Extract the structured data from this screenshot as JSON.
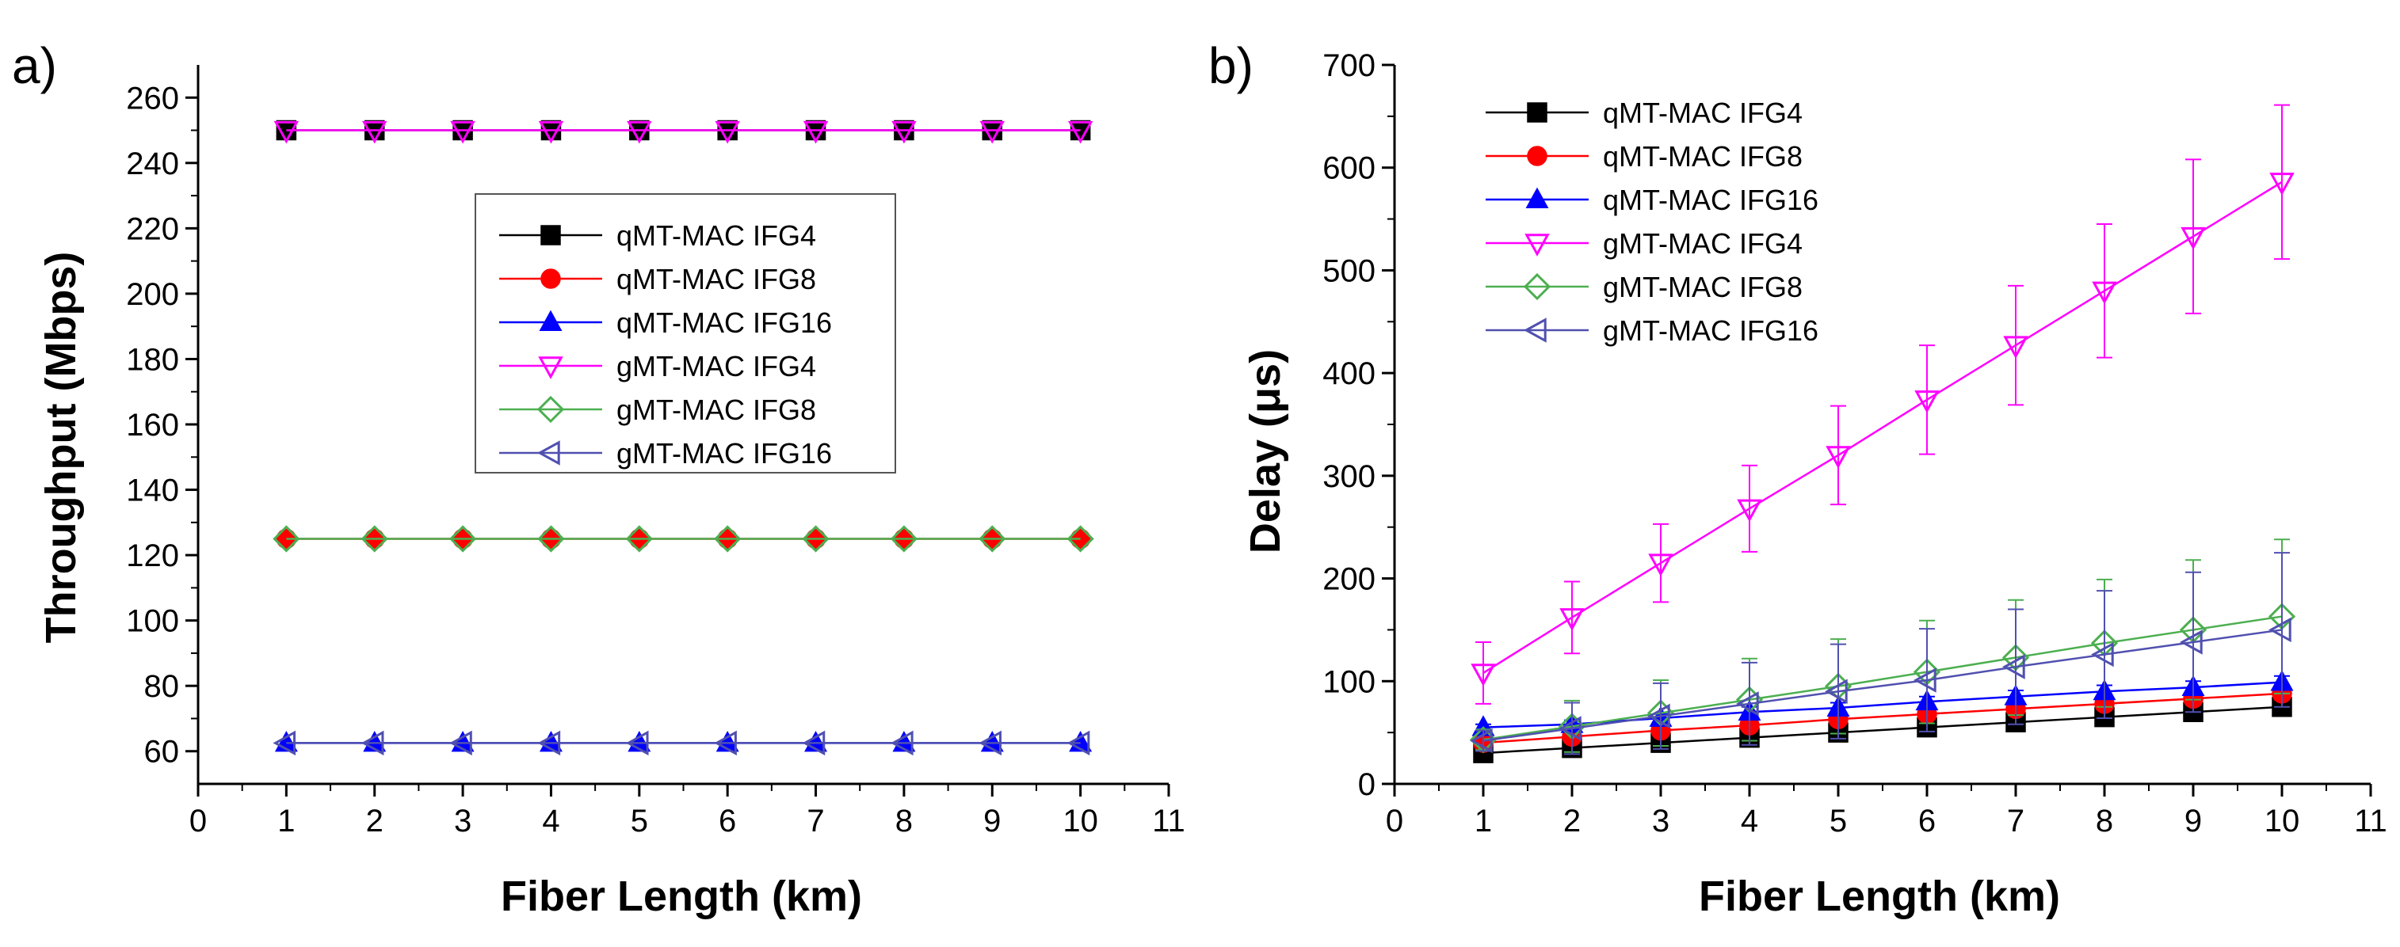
{
  "chart_data": [
    {
      "panel_label": "a)",
      "type": "line",
      "xlabel": "Fiber Length (km)",
      "ylabel": "Throughput (Mbps)",
      "xlim": [
        0,
        11
      ],
      "ylim": [
        50,
        270
      ],
      "xticks": [
        0,
        1,
        2,
        3,
        4,
        5,
        6,
        7,
        8,
        9,
        10,
        11
      ],
      "yticks": [
        60,
        80,
        100,
        120,
        140,
        160,
        180,
        200,
        220,
        240,
        260
      ],
      "grid": false,
      "legend_position": "center-right",
      "x": [
        1,
        2,
        3,
        4,
        5,
        6,
        7,
        8,
        9,
        10
      ],
      "series": [
        {
          "name": "qMT-MAC IFG4",
          "color": "#000000",
          "marker": "square",
          "values": [
            250,
            250,
            250,
            250,
            250,
            250,
            250,
            250,
            250,
            250
          ]
        },
        {
          "name": "qMT-MAC IFG8",
          "color": "#ff0000",
          "marker": "circle",
          "values": [
            125,
            125,
            125,
            125,
            125,
            125,
            125,
            125,
            125,
            125
          ]
        },
        {
          "name": "qMT-MAC IFG16",
          "color": "#0000ff",
          "marker": "triangle-up",
          "values": [
            62.5,
            62.5,
            62.5,
            62.5,
            62.5,
            62.5,
            62.5,
            62.5,
            62.5,
            62.5
          ]
        },
        {
          "name": "gMT-MAC IFG4",
          "color": "#ff00ff",
          "marker": "triangle-down",
          "values": [
            250,
            250,
            250,
            250,
            250,
            250,
            250,
            250,
            250,
            250
          ]
        },
        {
          "name": "gMT-MAC IFG8",
          "color": "#4caf50",
          "marker": "diamond",
          "values": [
            125,
            125,
            125,
            125,
            125,
            125,
            125,
            125,
            125,
            125
          ]
        },
        {
          "name": "gMT-MAC IFG16",
          "color": "#5050b0",
          "marker": "triangle-left",
          "values": [
            62.5,
            62.5,
            62.5,
            62.5,
            62.5,
            62.5,
            62.5,
            62.5,
            62.5,
            62.5
          ]
        }
      ]
    },
    {
      "panel_label": "b)",
      "type": "line",
      "xlabel": "Fiber Length (km)",
      "ylabel": "Delay (μs)",
      "xlim": [
        0,
        11
      ],
      "ylim": [
        0,
        700
      ],
      "xticks": [
        0,
        1,
        2,
        3,
        4,
        5,
        6,
        7,
        8,
        9,
        10,
        11
      ],
      "yticks": [
        0,
        100,
        200,
        300,
        400,
        500,
        600,
        700
      ],
      "grid": false,
      "legend_position": "top-left",
      "x": [
        1,
        2,
        3,
        4,
        5,
        6,
        7,
        8,
        9,
        10
      ],
      "series": [
        {
          "name": "qMT-MAC IFG4",
          "color": "#000000",
          "marker": "square",
          "values": [
            30,
            35,
            40,
            45,
            50,
            55,
            60,
            65,
            70,
            75
          ],
          "errors": [
            3,
            4,
            4,
            5,
            5,
            5,
            6,
            6,
            6,
            6
          ]
        },
        {
          "name": "qMT-MAC IFG8",
          "color": "#ff0000",
          "marker": "circle",
          "values": [
            40,
            46,
            52,
            57,
            63,
            68,
            73,
            78,
            83,
            88
          ],
          "errors": [
            3,
            4,
            4,
            5,
            5,
            5,
            6,
            6,
            6,
            6
          ]
        },
        {
          "name": "qMT-MAC IFG16",
          "color": "#0000ff",
          "marker": "triangle-up",
          "values": [
            55,
            58,
            64,
            70,
            74,
            80,
            85,
            90,
            94,
            99
          ],
          "errors": [
            3,
            4,
            4,
            5,
            5,
            5,
            6,
            6,
            6,
            6
          ]
        },
        {
          "name": "gMT-MAC IFG4",
          "color": "#ff00ff",
          "marker": "triangle-down",
          "values": [
            108,
            162,
            215,
            268,
            320,
            374,
            427,
            480,
            533,
            586
          ],
          "errors": [
            30,
            35,
            38,
            42,
            48,
            53,
            58,
            65,
            75,
            75
          ]
        },
        {
          "name": "gMT-MAC IFG8",
          "color": "#4caf50",
          "marker": "diamond",
          "values": [
            43,
            56,
            69,
            82,
            95,
            109,
            123,
            137,
            150,
            163
          ],
          "errors": [
            10,
            25,
            32,
            40,
            46,
            50,
            56,
            62,
            68,
            75
          ]
        },
        {
          "name": "gMT-MAC IFG16",
          "color": "#5050b0",
          "marker": "triangle-left",
          "values": [
            42,
            54,
            66,
            78,
            90,
            101,
            114,
            126,
            138,
            150
          ],
          "errors": [
            10,
            25,
            32,
            40,
            46,
            50,
            56,
            62,
            68,
            75
          ]
        }
      ]
    }
  ]
}
